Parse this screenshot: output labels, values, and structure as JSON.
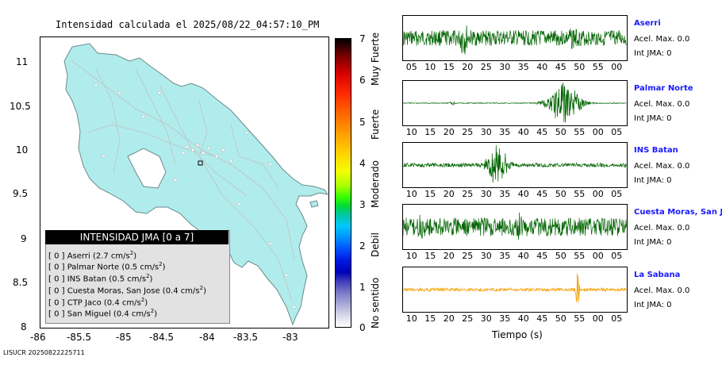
{
  "map": {
    "title": "Intensidad calculada el 2025/08/22_04:57:10_PM",
    "y_ticks": [
      "11",
      "10.5",
      "10",
      "9.5",
      "9",
      "8.5",
      "8"
    ],
    "x_ticks": [
      "-86",
      "-85.5",
      "-85",
      "-84.5",
      "-84",
      "-83.5",
      "-83"
    ],
    "land_color": "#b1ecec",
    "legend": {
      "title": "INTENSIDAD JMA [0 a 7]",
      "rows": [
        {
          "level": "[ 0 ]",
          "station": "Aserri",
          "value": "(2.7 cm/s",
          "sup": "2",
          "close": ")"
        },
        {
          "level": "[ 0 ]",
          "station": "Palmar Norte",
          "value": "(0.5 cm/s",
          "sup": "2",
          "close": ")"
        },
        {
          "level": "[ 0 ]",
          "station": "INS Batan",
          "value": "(0.5 cm/s",
          "sup": "2",
          "close": ")"
        },
        {
          "level": "[ 0 ]",
          "station": "Cuesta Moras, San Jose",
          "value": "(0.4 cm/s",
          "sup": "2",
          "close": ")"
        },
        {
          "level": "[ 0 ]",
          "station": "CTP Jaco",
          "value": "(0.4 cm/s",
          "sup": "2",
          "close": ")"
        },
        {
          "level": "[ 0 ]",
          "station": "San Miguel",
          "value": "(0.4 cm/s",
          "sup": "2",
          "close": ")"
        }
      ]
    }
  },
  "scale": {
    "numbers": [
      "7",
      "6",
      "5",
      "4",
      "3",
      "2",
      "1",
      "0"
    ],
    "categories": [
      "Muy Fuerte",
      "Fuerte",
      "Moderado",
      "Debil",
      "No sentido"
    ]
  },
  "panels": [
    {
      "name": "Aserri",
      "accel": "Acel. Max. 0.0",
      "jma": "Int JMA: 0",
      "color": "#006400",
      "ticks": [
        "05",
        "10",
        "15",
        "20",
        "25",
        "30",
        "35",
        "40",
        "45",
        "50",
        "55",
        "00"
      ]
    },
    {
      "name": "Palmar Norte",
      "accel": "Acel. Max. 0.0",
      "jma": "Int JMA: 0",
      "color": "#006400",
      "ticks": [
        "10",
        "15",
        "20",
        "25",
        "30",
        "35",
        "40",
        "45",
        "50",
        "55",
        "00",
        "05"
      ]
    },
    {
      "name": "INS Batan",
      "accel": "Acel. Max. 0.0",
      "jma": "Int JMA: 0",
      "color": "#006400",
      "ticks": [
        "10",
        "15",
        "20",
        "25",
        "30",
        "35",
        "40",
        "45",
        "50",
        "55",
        "00",
        "05"
      ]
    },
    {
      "name": "Cuesta Moras, San Jose",
      "accel": "Acel. Max. 0.0",
      "jma": "Int JMA: 0",
      "color": "#006400",
      "ticks": [
        "10",
        "15",
        "20",
        "25",
        "30",
        "35",
        "40",
        "45",
        "50",
        "55",
        "00",
        "05"
      ]
    },
    {
      "name": "La Sabana",
      "accel": "Acel. Max. 0.0",
      "jma": "Int JMA: 0",
      "color": "#f5a000",
      "ticks": [
        "10",
        "15",
        "20",
        "25",
        "30",
        "35",
        "40",
        "45",
        "50",
        "55",
        "00",
        "05"
      ]
    }
  ],
  "x_axis_label": "Tiempo (s)",
  "footer": "LISUCR 20250822225711",
  "chart_data": [
    {
      "type": "heatmap",
      "title": "Intensidad calculada el 2025/08/22_04:57:10_PM",
      "xlabel": "",
      "ylabel": "",
      "xlim": [
        -86,
        -82.6
      ],
      "ylim": [
        8,
        11.3
      ],
      "x_ticks": [
        -86,
        -85.5,
        -85,
        -84.5,
        -84,
        -83.5,
        -83
      ],
      "y_ticks": [
        8,
        8.5,
        9,
        9.5,
        10,
        10.5,
        11
      ],
      "colorbar": {
        "range": [
          0,
          7
        ],
        "label_categories": [
          "No sentido",
          "Debil",
          "Moderado",
          "Fuerte",
          "Muy Fuerte"
        ]
      }
    },
    {
      "type": "line",
      "title": "Aserri",
      "xlabel": "Tiempo (s)",
      "shape": {
        "kind": "noise",
        "amp": 0.38,
        "bursts": [
          {
            "center": 0.27,
            "width": 0.015,
            "amp": 1.0
          },
          {
            "center": 0.76,
            "width": 0.02,
            "amp": 0.6
          }
        ]
      }
    },
    {
      "type": "line",
      "title": "Palmar Norte",
      "xlabel": "Tiempo (s)",
      "shape": {
        "kind": "event",
        "amp": 0.02,
        "bursts": [
          {
            "center": 0.72,
            "width": 0.05,
            "amp": 1.0
          },
          {
            "center": 0.22,
            "width": 0.01,
            "amp": 0.1
          }
        ]
      }
    },
    {
      "type": "line",
      "title": "INS Batan",
      "xlabel": "Tiempo (s)",
      "shape": {
        "kind": "event",
        "amp": 0.1,
        "bursts": [
          {
            "center": 0.42,
            "width": 0.035,
            "amp": 1.0
          }
        ]
      }
    },
    {
      "type": "line",
      "title": "Cuesta Moras, San Jose",
      "xlabel": "Tiempo (s)",
      "shape": {
        "kind": "noise",
        "amp": 0.45,
        "bursts": [
          {
            "center": 0.52,
            "width": 0.01,
            "amp": 1.0
          },
          {
            "center": 0.08,
            "width": 0.015,
            "amp": 0.7
          }
        ]
      }
    },
    {
      "type": "line",
      "title": "La Sabana",
      "xlabel": "Tiempo (s)",
      "shape": {
        "kind": "noise",
        "amp": 0.08,
        "bursts": [
          {
            "center": 0.78,
            "width": 0.006,
            "amp": 1.0
          }
        ]
      }
    }
  ]
}
